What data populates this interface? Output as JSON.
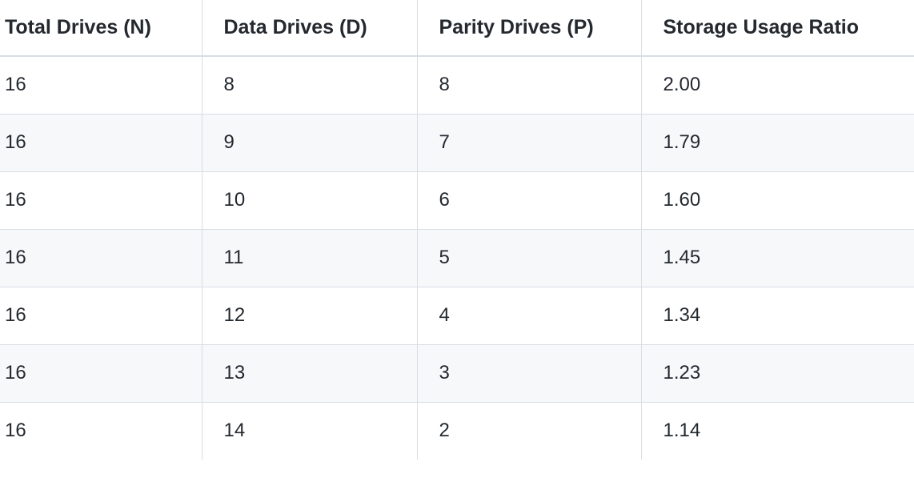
{
  "table": {
    "headers": [
      "Total Drives (N)",
      "Data Drives (D)",
      "Parity Drives (P)",
      "Storage Usage Ratio"
    ],
    "rows": [
      [
        "16",
        "8",
        "8",
        "2.00"
      ],
      [
        "16",
        "9",
        "7",
        "1.79"
      ],
      [
        "16",
        "10",
        "6",
        "1.60"
      ],
      [
        "16",
        "11",
        "5",
        "1.45"
      ],
      [
        "16",
        "12",
        "4",
        "1.34"
      ],
      [
        "16",
        "13",
        "3",
        "1.23"
      ],
      [
        "16",
        "14",
        "2",
        "1.14"
      ]
    ]
  }
}
